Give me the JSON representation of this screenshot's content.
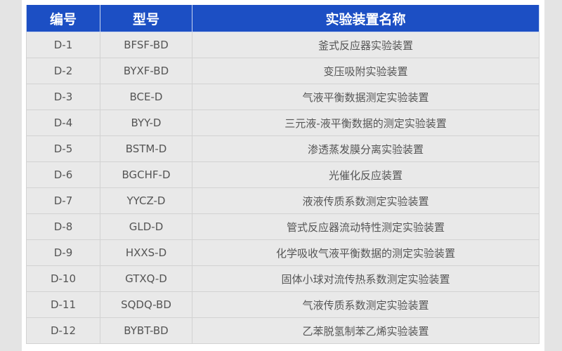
{
  "table": {
    "headers": [
      "编号",
      "型号",
      "实验装置名称"
    ],
    "rows": [
      [
        "D-1",
        "BFSF-BD",
        "釜式反应器实验装置"
      ],
      [
        "D-2",
        "BYXF-BD",
        "变压吸附实验装置"
      ],
      [
        "D-3",
        "BCE-D",
        "气液平衡数据测定实验装置"
      ],
      [
        "D-4",
        "BYY-D",
        "三元液-液平衡数据的测定实验装置"
      ],
      [
        "D-5",
        "BSTM-D",
        "渗透蒸发膜分离实验装置"
      ],
      [
        "D-6",
        "BGCHF-D",
        "光催化反应装置"
      ],
      [
        "D-7",
        "YYCZ-D",
        "液液传质系数测定实验装置"
      ],
      [
        "D-8",
        "GLD-D",
        "管式反应器流动特性测定实验装置"
      ],
      [
        "D-9",
        "HXXS-D",
        "化学吸收气液平衡数据的测定实验装置"
      ],
      [
        "D-10",
        "GTXQ-D",
        "固体小球对流传热系数测定实验装置"
      ],
      [
        "D-11",
        "SQDQ-BD",
        "气液传质系数测定实验装置"
      ],
      [
        "D-12",
        "BYBT-BD",
        "乙苯脱氢制苯乙烯实验装置"
      ]
    ]
  },
  "colors": {
    "header_bg": "#1c4fc4",
    "row_bg": "#e9e9e9",
    "text": "#555555"
  }
}
